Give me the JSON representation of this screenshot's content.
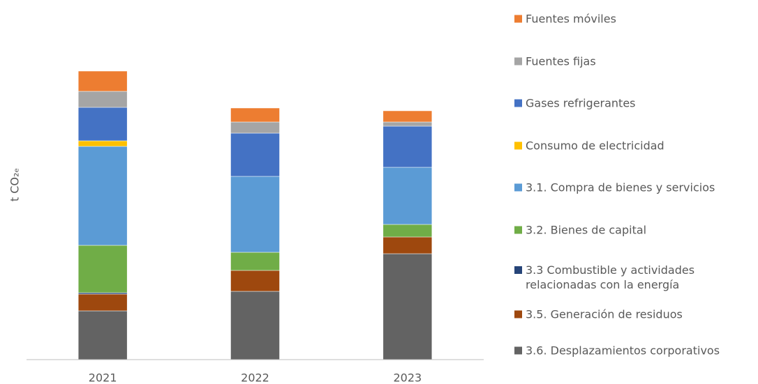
{
  "chart_data": {
    "type": "stacked_bar",
    "ylabel": "t CO₂ₑ",
    "categories": [
      "2021",
      "2022",
      "2023"
    ],
    "ylim": [
      0,
      500
    ],
    "legend": "right",
    "series": [
      {
        "name": "3.6. Desplazamientos corporativos",
        "color": "#636363",
        "values": [
          70,
          98,
          152
        ]
      },
      {
        "name": "3.5. Generación de residuos",
        "color": "#9e480e",
        "values": [
          24,
          30,
          24
        ]
      },
      {
        "name": "3.3 Combustible y actividades relacionadas con la energía",
        "color": "#264478",
        "values": [
          2,
          0,
          0
        ]
      },
      {
        "name": "3.2. Bienes de capital",
        "color": "#70ad47",
        "values": [
          68,
          26,
          18
        ]
      },
      {
        "name": "3.1. Compra de bienes y servicios",
        "color": "#5b9bd5",
        "values": [
          142,
          109,
          82
        ]
      },
      {
        "name": "Consumo de electricidad",
        "color": "#ffc000",
        "values": [
          8,
          0,
          0
        ]
      },
      {
        "name": "Gases refrigerantes",
        "color": "#4472c4",
        "values": [
          48,
          62,
          59
        ]
      },
      {
        "name": "Fuentes fijas",
        "color": "#a5a5a5",
        "values": [
          23,
          16,
          6
        ]
      },
      {
        "name": "Fuentes móviles",
        "color": "#ed7d31",
        "values": [
          29,
          20,
          16
        ]
      }
    ]
  }
}
